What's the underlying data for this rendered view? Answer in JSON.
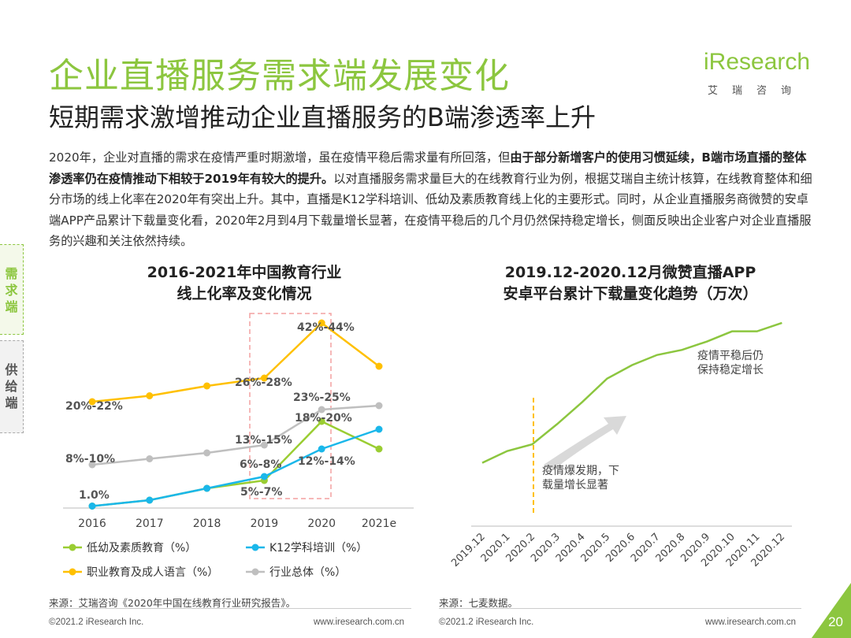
{
  "header": {
    "title": "企业直播服务需求端发展变化",
    "subtitle": "短期需求激增推动企业直播服务的B端渗透率上升",
    "logo_text": "iResearch",
    "logo_cn": "艾瑞咨询"
  },
  "side_tabs": {
    "demand": "需求端",
    "supply": "供给端"
  },
  "body": {
    "p1": "2020年，企业对直播的需求在疫情严重时期激增，虽在疫情平稳后需求量有所回落，但",
    "b1": "由于部分新增客户的使用习惯延续，B端市场直播的整体渗透率仍在疫情推动下相较于2019年有较大的提升。",
    "p2": "以对直播服务需求量巨大的在线教育行业为例，根据艾瑞自主统计核算，在线教育整体和细分市场的线上化率在2020年有突出上升。其中，直播是K12学科培训、低幼及素质教育线上化的主要形式。同时，从企业直播服务商微赞的安卓端APP产品累计下载量变化看，2020年2月到4月下载量增长显著，在疫情平稳后的几个月仍然保持稳定增长，侧面反映出企业客户对企业直播服务的兴趣和关注依然持续。"
  },
  "chart_data": [
    {
      "type": "line",
      "title_line1": "2016-2021年中国教育行业",
      "title_line2": "线上化率及变化情况",
      "categories": [
        "2016",
        "2017",
        "2018",
        "2019",
        "2020",
        "2021e"
      ],
      "ylim": [
        0,
        50
      ],
      "series": [
        {
          "name": "低幼及素质教育（%）",
          "color": "#9acd32",
          "values": [
            0.5,
            2,
            5,
            7,
            22,
            15
          ]
        },
        {
          "name": "K12学科培训（%）",
          "color": "#1ab7ea",
          "values": [
            0.5,
            2,
            5,
            8,
            15,
            20
          ]
        },
        {
          "name": "职业教育及成人语言（%）",
          "color": "#ffc000",
          "values": [
            27,
            28.5,
            31,
            33,
            47,
            36
          ]
        },
        {
          "name": "行业总体（%）",
          "color": "#bfbfbf",
          "values": [
            11,
            12.5,
            14,
            16,
            25,
            26
          ]
        }
      ],
      "annotations": [
        "20%-22%",
        "26%-28%",
        "42%-44%",
        "8%-10%",
        "13%-15%",
        "23%-25%",
        "18%-20%",
        "6%-8%",
        "12%-14%",
        "5%-7%",
        "1.0%"
      ]
    },
    {
      "type": "line",
      "title_line1": "2019.12-2020.12月微赞直播APP",
      "title_line2": "安卓平台累计下载量变化趋势（万次）",
      "categories": [
        "2019.12",
        "2020.1",
        "2020.2",
        "2020.3",
        "2020.4",
        "2020.5",
        "2020.6",
        "2020.7",
        "2020.8",
        "2020.9",
        "2020.10",
        "2020.11",
        "2020.12"
      ],
      "ylim": [
        0,
        100
      ],
      "series": [
        {
          "name": "累计下载量",
          "color": "#8cc63f",
          "values": [
            10,
            17,
            21,
            33,
            46,
            60,
            68,
            74,
            77,
            82,
            88,
            88,
            93
          ]
        }
      ],
      "annotation_early_1": "疫情爆发期，下",
      "annotation_early_2": "载量增长显著",
      "annotation_late_1": "疫情平稳后仍",
      "annotation_late_2": "保持稳定增长"
    }
  ],
  "source": {
    "left": "来源：艾瑞咨询《2020年中国在线教育行业研究报告》。",
    "right": "来源：七麦数据。"
  },
  "footer": {
    "copyright_left": "©2021.2 iResearch Inc.",
    "url_left": "www.iresearch.com.cn",
    "copyright_right": "©2021.2 iResearch Inc.",
    "url_right": "www.iresearch.com.cn",
    "page_number": "20"
  }
}
